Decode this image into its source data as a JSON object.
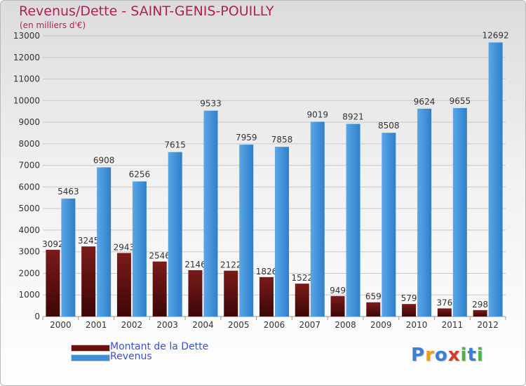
{
  "title": "Revenus/Dette - SAINT-GENIS-POUILLY",
  "subtitle": "(en milliers d'€)",
  "colors": {
    "title": "#b01e5c",
    "legend_text": "#3b50d4",
    "dette": "#7a1b1b",
    "revenus": "#3d8fd8"
  },
  "legend": [
    {
      "label": "Montant de la Dette",
      "color": "#6b0f0f"
    },
    {
      "label": "Revenus",
      "color": "#3d8fd8"
    }
  ],
  "logo": {
    "letters": [
      "P",
      "r",
      "o",
      "x",
      "i",
      "t",
      "i"
    ],
    "colors": [
      "#3a7fd0",
      "#f29b1d",
      "#3a7fd0",
      "#d43b2a",
      "#4db14a",
      "#3a7fd0",
      "#4db14a"
    ]
  },
  "chart_data": {
    "type": "bar",
    "categories": [
      "2000",
      "2001",
      "2002",
      "2003",
      "2004",
      "2005",
      "2006",
      "2007",
      "2008",
      "2009",
      "2010",
      "2011",
      "2012"
    ],
    "series": [
      {
        "name": "Montant de la Dette",
        "values": [
          3092,
          3245,
          2943,
          2546,
          2146,
          2122,
          1826,
          1522,
          949,
          659,
          579,
          376,
          298
        ],
        "labels": [
          "3092",
          "3245",
          "2943",
          "2546",
          "2146",
          "2122",
          "1826",
          "1522",
          "949",
          "659",
          "579",
          "376",
          "298"
        ]
      },
      {
        "name": "Revenus",
        "values": [
          5463,
          6908,
          6256,
          7615,
          9533,
          7959,
          7858,
          9019,
          8921,
          8508,
          9624,
          9655,
          12692
        ],
        "labels": [
          "5463",
          "6908",
          "6256",
          "7615",
          "9533",
          "7959",
          "7858",
          "9019",
          "8921",
          "8508",
          "9624",
          "9655",
          "12692"
        ]
      }
    ],
    "yticks": [
      "0",
      "1000",
      "2000",
      "3000",
      "4000",
      "5000",
      "6000",
      "7000",
      "8000",
      "9000",
      "10000",
      "11000",
      "12000",
      "13000"
    ],
    "ylim": [
      0,
      13000
    ],
    "grid": true
  }
}
